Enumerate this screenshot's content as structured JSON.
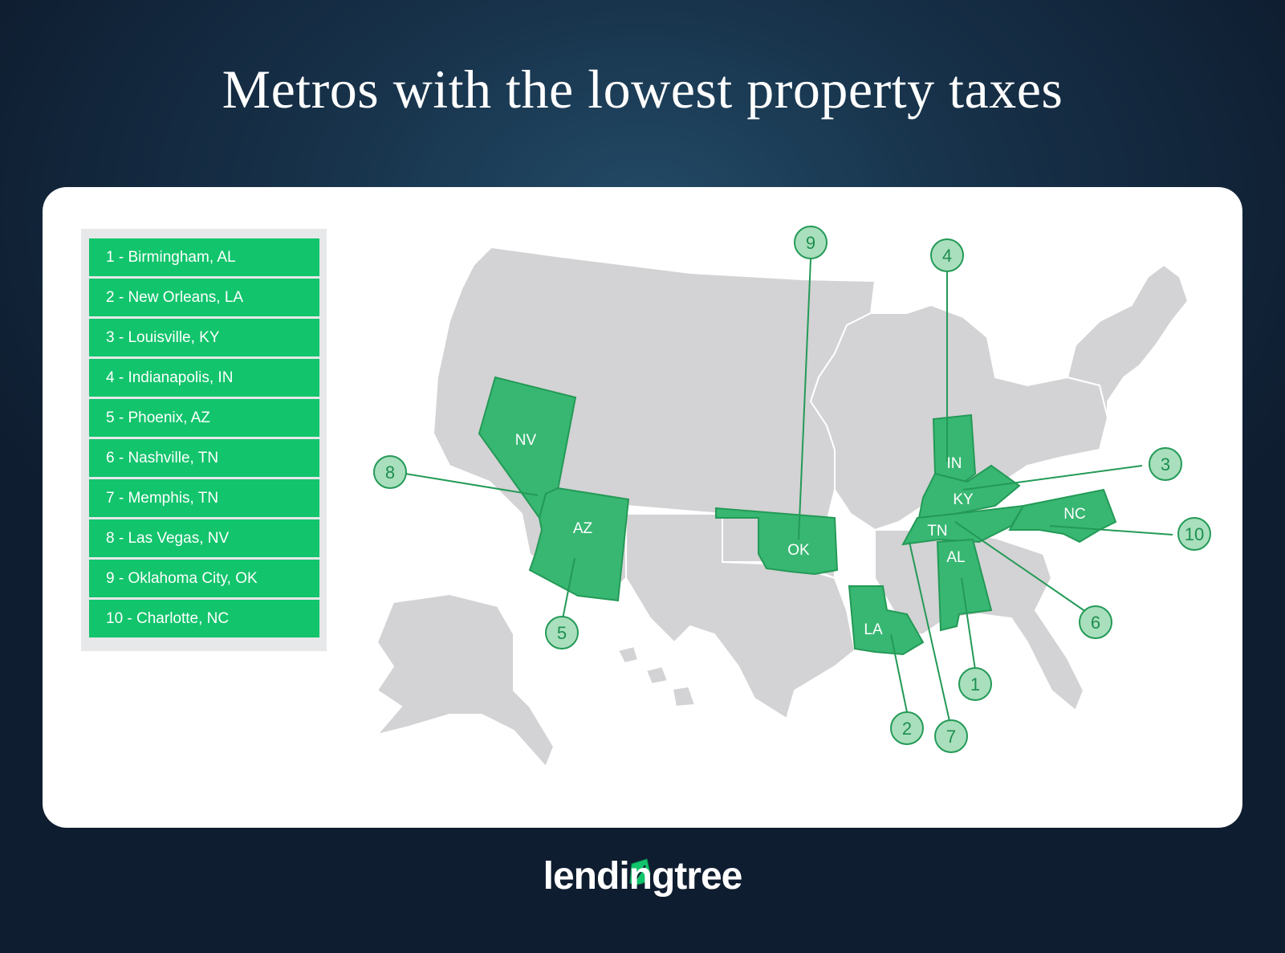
{
  "title": "Metros with the lowest property taxes",
  "legend": [
    "1 - Birmingham, AL",
    "2 - New Orleans, LA",
    "3 - Louisville, KY",
    "4 - Indianapolis, IN",
    "5 - Phoenix, AZ",
    "6 - Nashville, TN",
    "7 - Memphis, TN",
    "8 - Las Vegas, NV",
    "9 - Oklahoma City, OK",
    "10 - Charlotte, NC"
  ],
  "states": {
    "NV": "NV",
    "AZ": "AZ",
    "OK": "OK",
    "LA": "LA",
    "IN": "IN",
    "KY": "KY",
    "TN": "TN",
    "AL": "AL",
    "NC": "NC"
  },
  "markers": [
    "1",
    "2",
    "3",
    "4",
    "5",
    "6",
    "7",
    "8",
    "9",
    "10"
  ],
  "logo": "lendingtree",
  "colors": {
    "highlight": "#38b772",
    "legend_row": "#12c46c",
    "other_states": "#d3d2d4",
    "background": "#15293f"
  }
}
